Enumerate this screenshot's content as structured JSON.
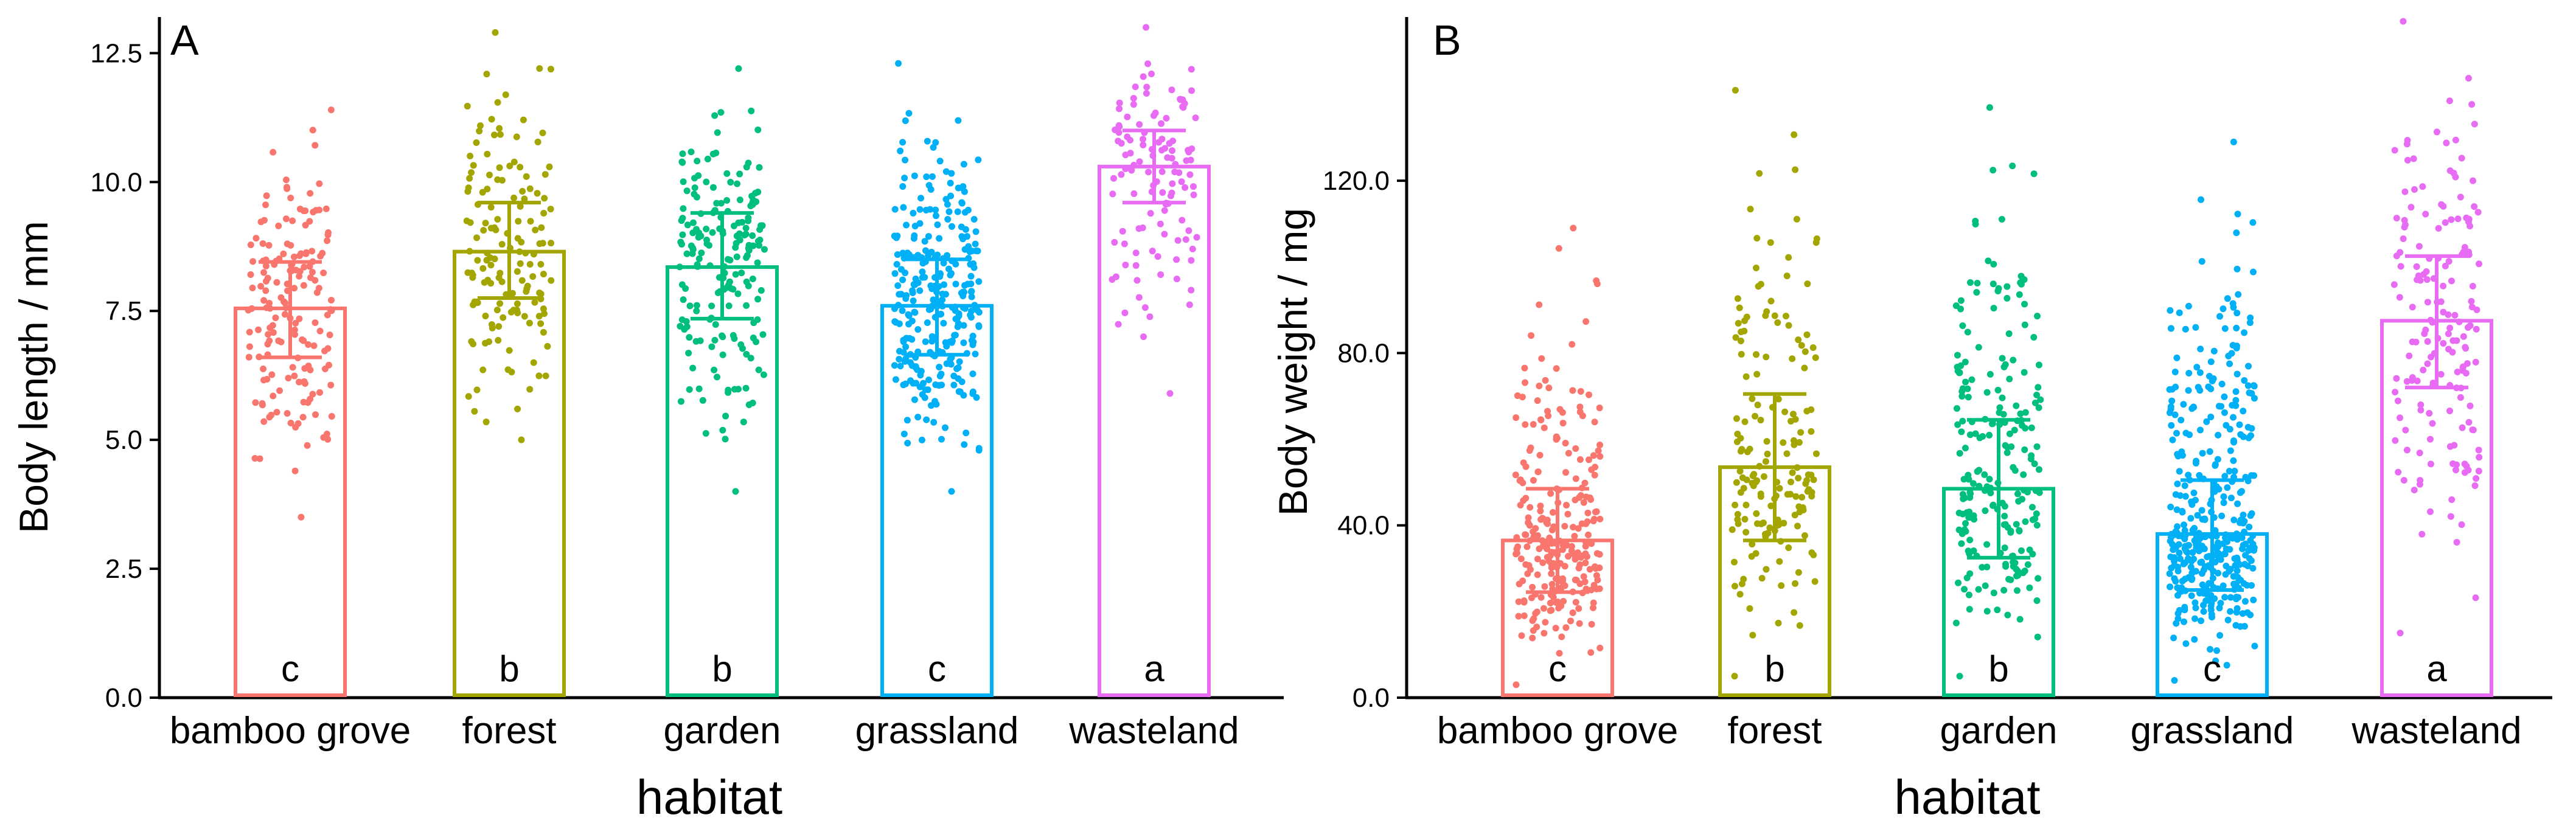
{
  "chart_data": [
    {
      "panel": "A",
      "type": "bar",
      "xlabel": "habitat",
      "ylabel": "Body length / mm",
      "ylim": [
        0,
        13.2
      ],
      "yticks": [
        "0.0",
        "2.5",
        "5.0",
        "7.5",
        "10.0",
        "12.5"
      ],
      "categories": [
        "bamboo grove",
        "forest",
        "garden",
        "grassland",
        "wasteland"
      ],
      "colors": [
        "#f8766d",
        "#a3a500",
        "#00bf7d",
        "#00b0f6",
        "#e76bf3"
      ],
      "values": [
        7.55,
        8.65,
        8.35,
        7.6,
        10.3
      ],
      "error_low": [
        6.6,
        7.75,
        7.35,
        6.65,
        9.6
      ],
      "error_high": [
        8.45,
        9.6,
        9.4,
        8.5,
        11.0
      ],
      "letters": [
        "c",
        "b",
        "b",
        "c",
        "a"
      ],
      "points_min": [
        3.5,
        5.0,
        4.0,
        4.0,
        5.9
      ],
      "points_max": [
        11.4,
        12.9,
        12.2,
        12.3,
        13.0
      ],
      "points_count": [
        170,
        150,
        190,
        300,
        120
      ]
    },
    {
      "panel": "B",
      "type": "bar",
      "xlabel": "habitat",
      "ylabel": "Body weight / mg",
      "ylim": [
        0,
        158
      ],
      "yticks": [
        "0.0",
        "40.0",
        "80.0",
        "120.0"
      ],
      "categories": [
        "bamboo grove",
        "forest",
        "garden",
        "grassland",
        "wasteland"
      ],
      "colors": [
        "#f8766d",
        "#a3a500",
        "#00bf7d",
        "#00b0f6",
        "#e76bf3"
      ],
      "values": [
        36.5,
        53.5,
        48.5,
        38.0,
        87.5
      ],
      "error_low": [
        24.5,
        36.5,
        32.5,
        25.0,
        72.0
      ],
      "error_high": [
        48.5,
        70.5,
        64.5,
        50.5,
        102.5
      ],
      "letters": [
        "c",
        "b",
        "b",
        "c",
        "a"
      ],
      "points_min": [
        3,
        5,
        5,
        4,
        15
      ],
      "points_max": [
        109,
        141,
        137,
        129,
        157
      ],
      "points_count": [
        260,
        170,
        220,
        400,
        170
      ]
    }
  ]
}
